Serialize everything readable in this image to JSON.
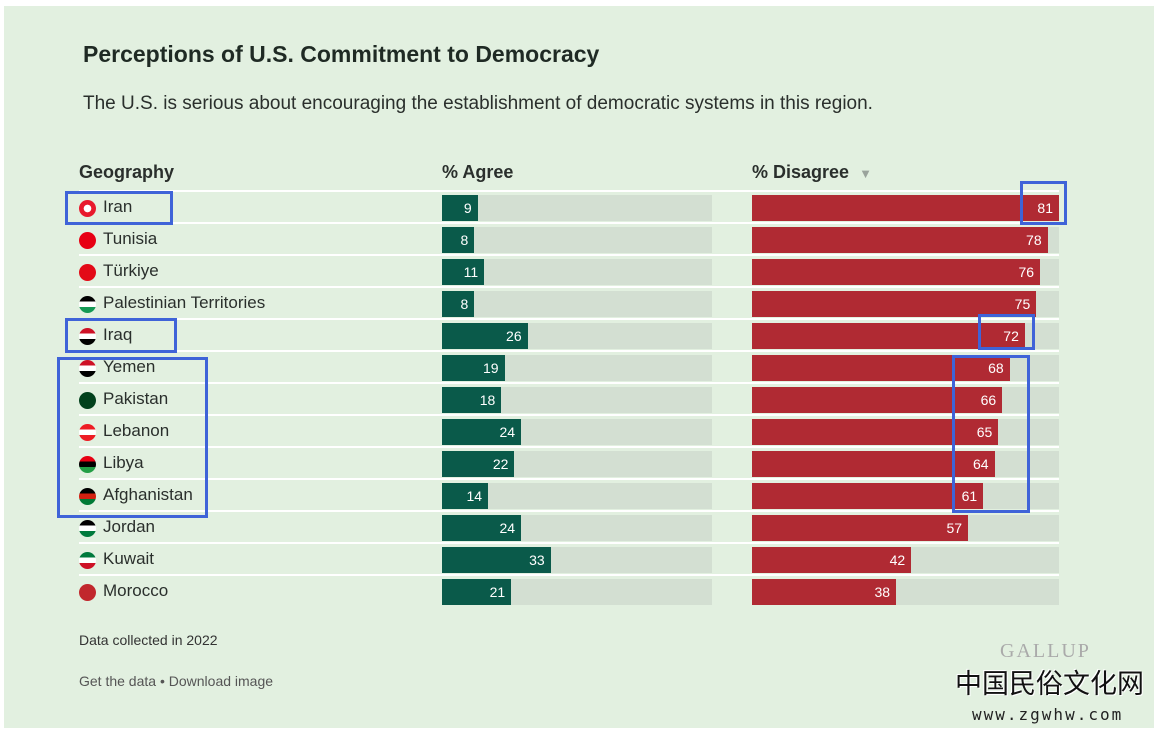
{
  "title": "Perceptions of U.S. Commitment to Democracy",
  "subtitle": "The U.S. is serious about encouraging the establishment of democratic systems in this region.",
  "chart_data": {
    "type": "bar",
    "columns": {
      "geography": "Geography",
      "agree": "% Agree",
      "disagree": "% Disagree"
    },
    "sort_icon": "▼",
    "categories": [
      "Iran",
      "Tunisia",
      "Türkiye",
      "Palestinian Territories",
      "Iraq",
      "Yemen",
      "Pakistan",
      "Lebanon",
      "Libya",
      "Afghanistan",
      "Jordan",
      "Kuwait",
      "Morocco"
    ],
    "series": [
      {
        "name": "% Agree",
        "color": "#0a5a4a",
        "values": [
          9,
          8,
          11,
          8,
          26,
          19,
          18,
          24,
          22,
          14,
          24,
          33,
          21
        ]
      },
      {
        "name": "% Disagree",
        "color": "#b02a33",
        "values": [
          81,
          78,
          76,
          75,
          72,
          68,
          66,
          65,
          64,
          61,
          57,
          42,
          38
        ]
      }
    ],
    "flags": [
      [
        "#e8192c",
        "#fff"
      ],
      [
        "#e70013",
        "#e70013"
      ],
      [
        "#e30a17",
        "#e30a17"
      ],
      [
        "#000",
        "#fff",
        "#149954"
      ],
      [
        "#ce1126",
        "#fff",
        "#000"
      ],
      [
        "#ce1126",
        "#fff",
        "#000"
      ],
      [
        "#01411c",
        "#01411c"
      ],
      [
        "#ed1c24",
        "#fff",
        "#ed1c24"
      ],
      [
        "#e70013",
        "#000",
        "#239e46"
      ],
      [
        "#000",
        "#d32011",
        "#007a36"
      ],
      [
        "#000",
        "#fff",
        "#007a3d"
      ],
      [
        "#007a3d",
        "#fff",
        "#ce1126"
      ],
      [
        "#c1272d",
        "#c1272d"
      ]
    ]
  },
  "footer": {
    "note": "Data collected in 2022",
    "get_data": "Get the data",
    "sep": " • ",
    "download": "Download image"
  },
  "logo": "GALLUP",
  "watermark": {
    "cn": "中国民俗文化网",
    "url": "www.zgwhw.com"
  }
}
